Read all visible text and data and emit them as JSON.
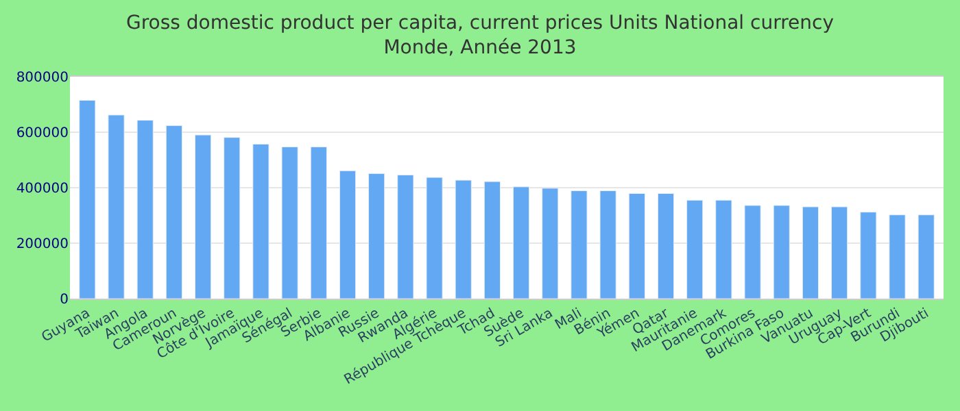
{
  "chart_data": {
    "type": "bar",
    "title": "Gross domestic product per capita, current prices Units National currency",
    "subtitle": "Monde, Année 2013",
    "categories": [
      "Guyana",
      "Taiwan",
      "Angola",
      "Cameroun",
      "Norvège",
      "Côte d'Ivoire",
      "Jamaïque",
      "Sénégal",
      "Serbie",
      "Albanie",
      "Russie",
      "Rwanda",
      "Algérie",
      "République Tchèque",
      "Tchad",
      "Suède",
      "Sri Lanka",
      "Mali",
      "Bénin",
      "Yémen",
      "Qatar",
      "Mauritanie",
      "Danemark",
      "Comores",
      "Burkina Faso",
      "Vanuatu",
      "Uruguay",
      "Cap-Vert",
      "Burundi",
      "Djibouti"
    ],
    "values": [
      715000,
      662000,
      643000,
      624000,
      590000,
      581000,
      557000,
      547000,
      547000,
      461000,
      451000,
      446000,
      437000,
      427000,
      422000,
      403000,
      398000,
      389000,
      389000,
      379000,
      379000,
      355000,
      355000,
      336000,
      336000,
      331000,
      331000,
      312000,
      302000,
      302000
    ],
    "color": "#62a8f2",
    "ylim": [
      0,
      800000
    ],
    "yticks": [
      0,
      200000,
      400000,
      600000,
      800000
    ],
    "grid": "y"
  }
}
